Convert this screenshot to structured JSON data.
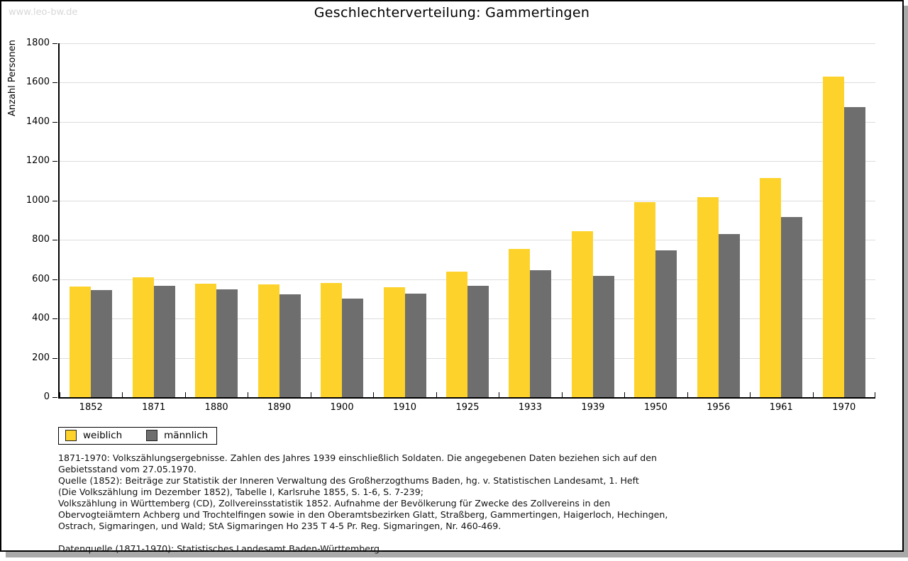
{
  "watermark": "www.leo-bw.de",
  "header": {
    "title": "Geschlechterverteilung: Gammertingen"
  },
  "chart_data": {
    "type": "bar",
    "title": "Geschlechterverteilung: Gammertingen",
    "xlabel": "",
    "ylabel": "Anzahl Personen",
    "ylim": [
      0,
      1800
    ],
    "ytick_step": 200,
    "grid": true,
    "legend_position": "bottom-left",
    "categories": [
      "1852",
      "1871",
      "1880",
      "1890",
      "1900",
      "1910",
      "1925",
      "1933",
      "1939",
      "1950",
      "1956",
      "1961",
      "1970"
    ],
    "series": [
      {
        "name": "weiblich",
        "color": "#FDD32B",
        "values": [
          562,
          610,
          578,
          575,
          582,
          560,
          640,
          755,
          845,
          992,
          1018,
          1115,
          1630
        ]
      },
      {
        "name": "männlich",
        "color": "#6E6E6E",
        "values": [
          545,
          568,
          550,
          522,
          500,
          525,
          565,
          647,
          617,
          748,
          828,
          916,
          1475
        ]
      }
    ]
  },
  "legend": {
    "items": [
      {
        "label": "weiblich",
        "color": "#FDD32B"
      },
      {
        "label": "männlich",
        "color": "#6E6E6E"
      }
    ]
  },
  "footnotes": {
    "lines": [
      "1871-1970: Volkszählungsergebnisse. Zahlen des Jahres 1939 einschließlich Soldaten. Die angegebenen Daten beziehen sich auf den",
      "Gebietsstand vom 27.05.1970.",
      "Quelle (1852): Beiträge zur Statistik der Inneren Verwaltung des Großherzogthums Baden, hg. v. Statistischen Landesamt, 1. Heft",
      "(Die Volkszählung im Dezember 1852), Tabelle I, Karlsruhe 1855, S. 1-6, S. 7-239;",
      "Volkszählung in Württemberg (CD), Zollvereinsstatistik 1852. Aufnahme der Bevölkerung für Zwecke des Zollvereins in den",
      "Obervogteiämtern Achberg und Trochtelfingen sowie in den Oberamtsbezirken Glatt, Straßberg, Gammertingen, Haigerloch, Hechingen,",
      "Ostrach, Sigmaringen, und Wald; StA Sigmaringen Ho 235 T 4-5 Pr. Reg. Sigmaringen, Nr. 460-469.",
      "",
      "Datenquelle (1871-1970): Statistisches Landesamt Baden-Württemberg."
    ]
  },
  "colors": {
    "gridline": "#DCDCDC",
    "axis": "#000000",
    "shadow": "#A9A9A9",
    "watermark": "#D8D8D8"
  }
}
